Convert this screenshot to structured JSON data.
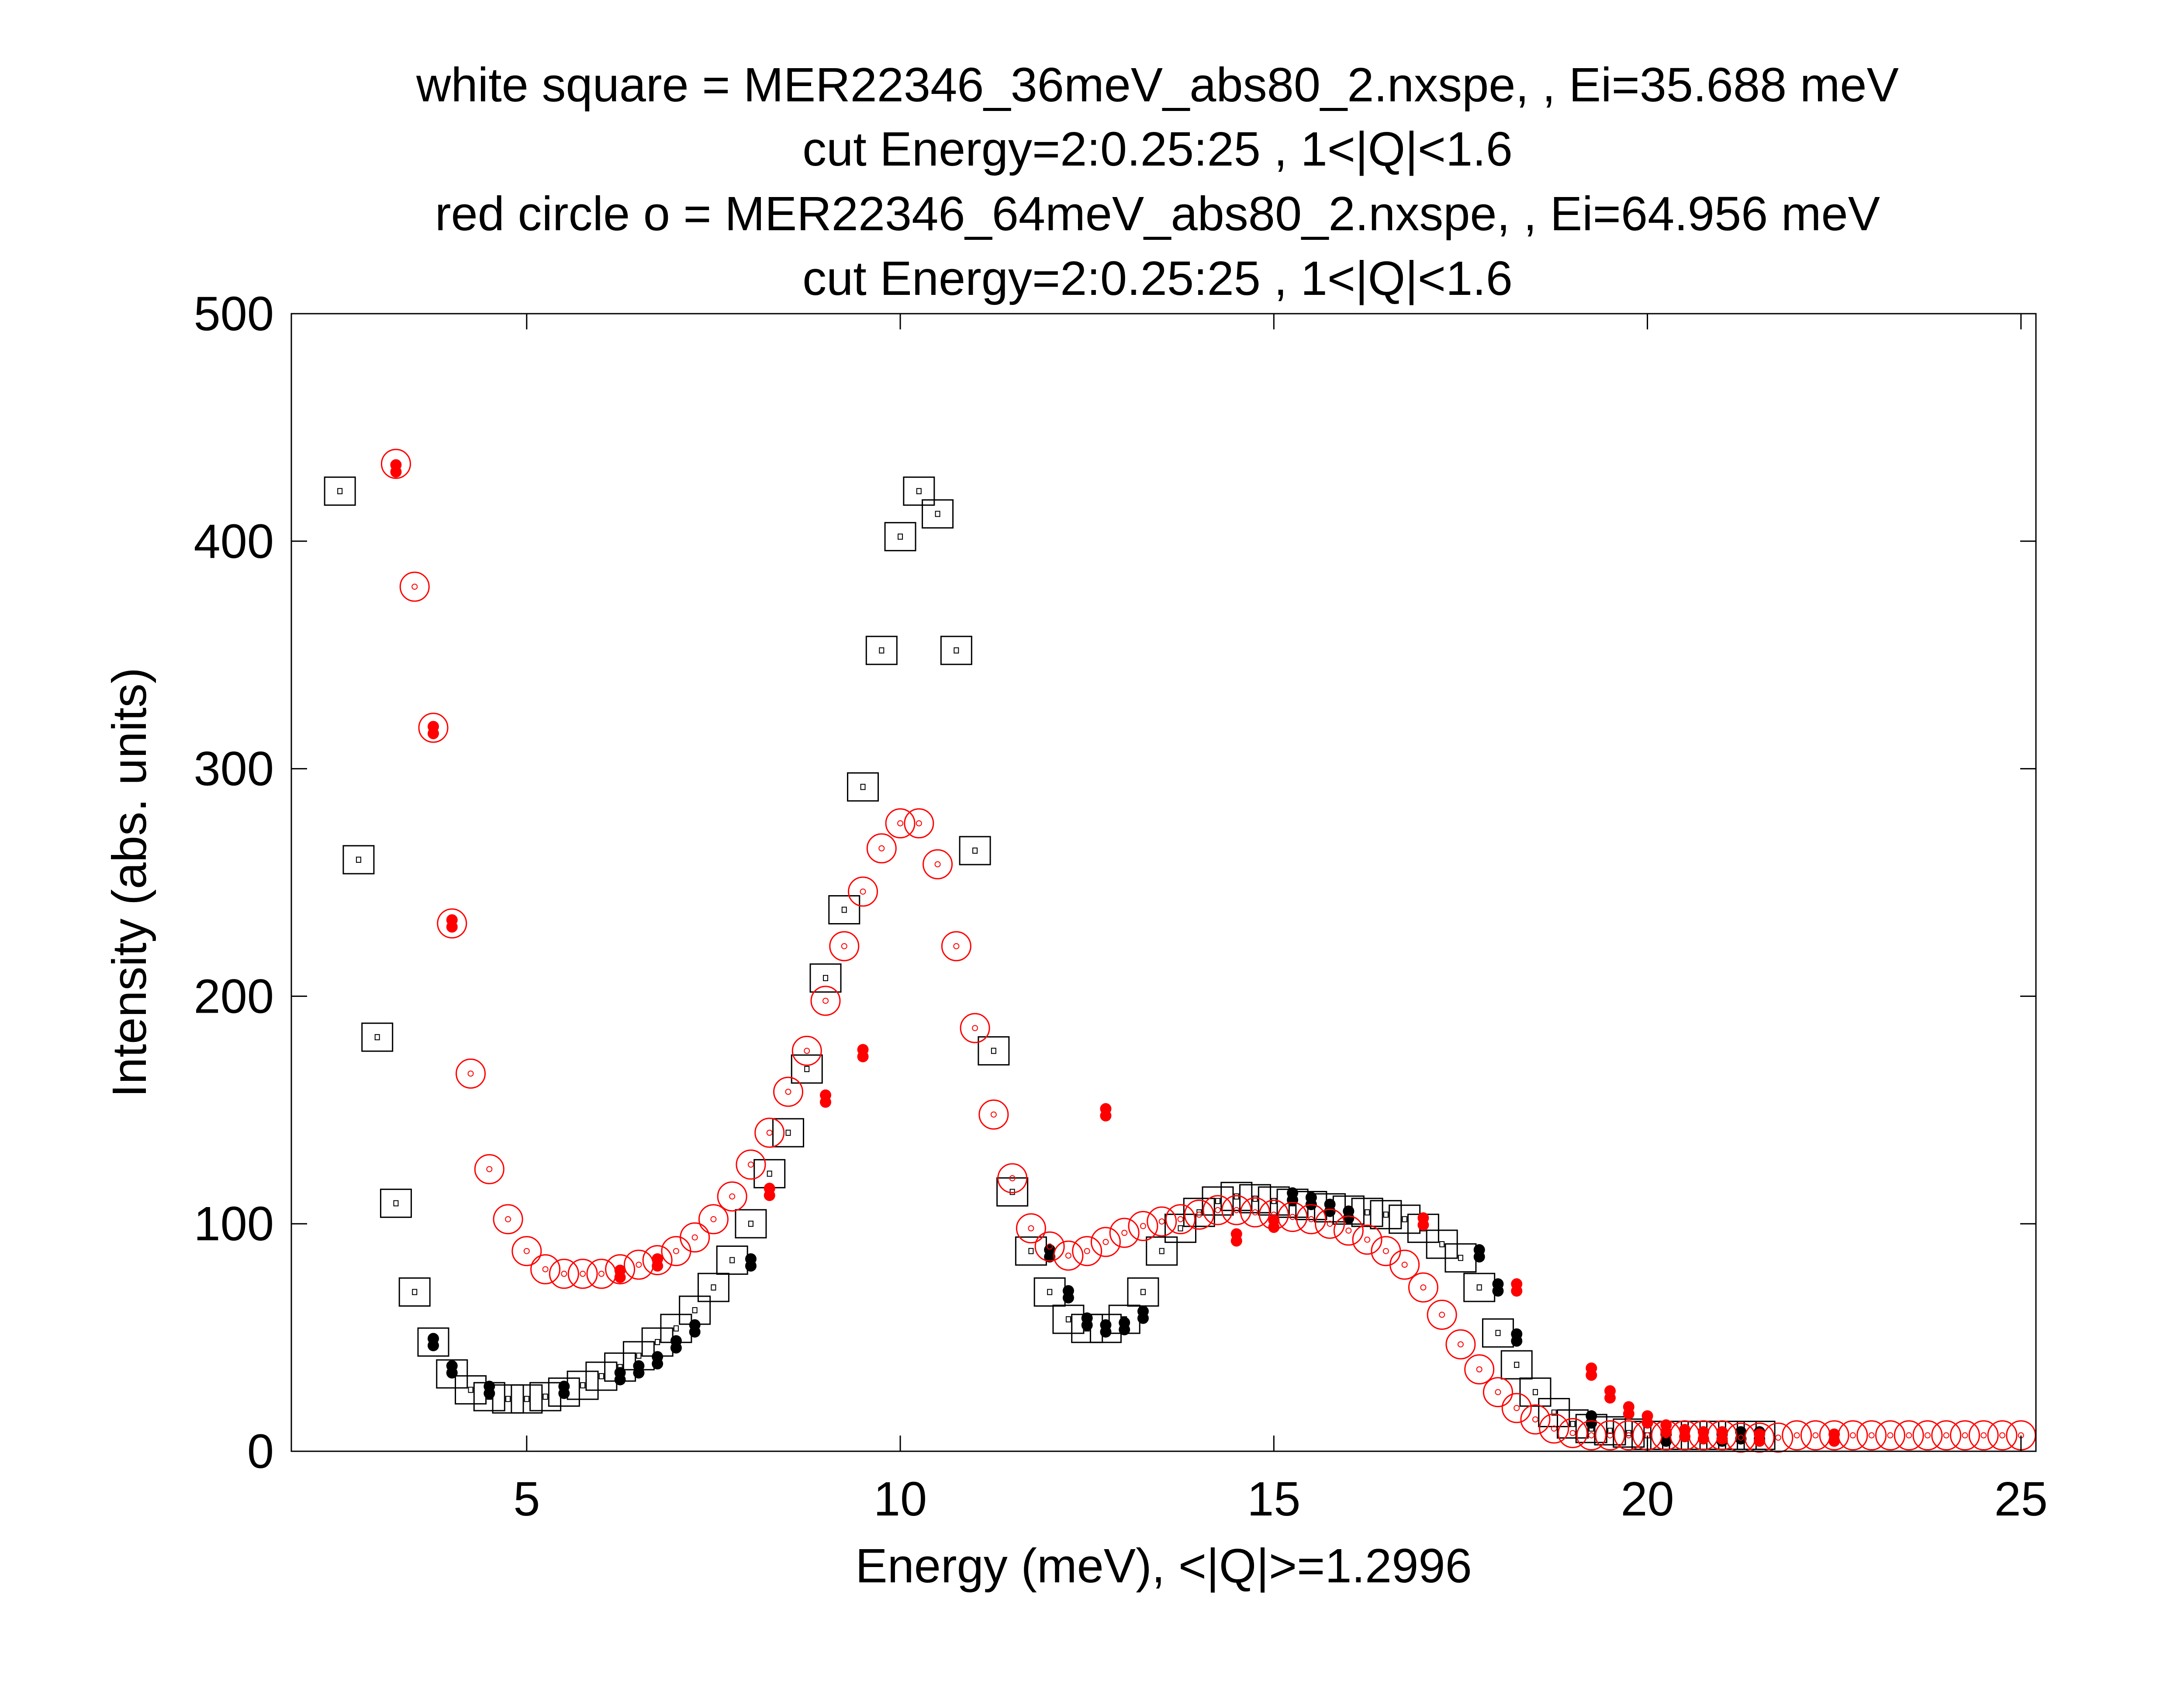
{
  "chart_data": {
    "type": "scatter",
    "title_lines": [
      "white square = MER22346_36meV_abs80_2.nxspe, , Ei=35.688 meV",
      "cut Energy=2:0.25:25 , 1<|Q|<1.6",
      "red circle o = MER22346_64meV_abs80_2.nxspe, , Ei=64.956 meV",
      "cut Energy=2:0.25:25 , 1<|Q|<1.6"
    ],
    "xlabel": "Energy (meV), <|Q|>=1.2996",
    "ylabel": "Intensity (abs. units)",
    "xlim": [
      1.85,
      25.2
    ],
    "ylim": [
      0,
      500
    ],
    "x_ticks": [
      5,
      10,
      15,
      20,
      25
    ],
    "y_ticks": [
      0,
      100,
      200,
      300,
      400,
      500
    ],
    "grid": false,
    "colors": {
      "series1": "#000000",
      "series2": "#ff0000",
      "axes": "#000000"
    },
    "series": [
      {
        "marker": "square",
        "x": [
          2.5,
          2.75,
          3.0,
          3.25,
          3.5,
          3.75,
          4.0,
          4.25,
          4.5,
          4.75,
          5.0,
          5.25,
          5.5,
          5.75,
          6.0,
          6.25,
          6.5,
          6.75,
          7.0,
          7.25,
          7.5,
          7.75,
          8.0,
          8.25,
          8.5,
          8.75,
          9.0,
          9.25,
          9.5,
          9.75,
          10.0,
          10.25,
          10.5,
          10.75,
          11.0,
          11.25,
          11.5,
          11.75,
          12.0,
          12.25,
          12.5,
          12.75,
          13.0,
          13.25,
          13.5,
          13.75,
          14.0,
          14.25,
          14.5,
          14.75,
          15.0,
          15.25,
          15.5,
          15.75,
          16.0,
          16.25,
          16.5,
          16.75,
          17.0,
          17.25,
          17.5,
          17.75,
          18.0,
          18.25,
          18.5,
          18.75,
          19.0,
          19.25,
          19.5,
          19.75,
          20.0,
          20.25,
          20.5,
          20.75,
          21.0,
          21.25,
          21.5
        ],
        "y": [
          422,
          260,
          182,
          109,
          70,
          48,
          34,
          27,
          24,
          23,
          23,
          24,
          26,
          29,
          33,
          37,
          42,
          48,
          54,
          62,
          72,
          84,
          100,
          122,
          140,
          168,
          208,
          238,
          292,
          352,
          402,
          422,
          412,
          352,
          264,
          176,
          114,
          88,
          70,
          58,
          54,
          54,
          58,
          70,
          88,
          98,
          105,
          110,
          112,
          111,
          110,
          109,
          108,
          107,
          106,
          105,
          104,
          102,
          98,
          91,
          85,
          72,
          52,
          38,
          26,
          17,
          12,
          10,
          9,
          8,
          7,
          7,
          7,
          7,
          7,
          7,
          7
        ],
        "error_points": [
          {
            "x": 3.75,
            "y": 48
          },
          {
            "x": 4.0,
            "y": 36
          },
          {
            "x": 4.5,
            "y": 27
          },
          {
            "x": 5.5,
            "y": 27
          },
          {
            "x": 6.25,
            "y": 33
          },
          {
            "x": 6.5,
            "y": 36
          },
          {
            "x": 6.75,
            "y": 40
          },
          {
            "x": 7.0,
            "y": 47
          },
          {
            "x": 7.25,
            "y": 54
          },
          {
            "x": 8.0,
            "y": 83
          },
          {
            "x": 12.0,
            "y": 87
          },
          {
            "x": 12.25,
            "y": 69
          },
          {
            "x": 12.5,
            "y": 57
          },
          {
            "x": 12.75,
            "y": 54
          },
          {
            "x": 13.0,
            "y": 55
          },
          {
            "x": 13.25,
            "y": 60
          },
          {
            "x": 15.25,
            "y": 112
          },
          {
            "x": 15.5,
            "y": 110
          },
          {
            "x": 15.75,
            "y": 107
          },
          {
            "x": 16.0,
            "y": 104
          },
          {
            "x": 17.75,
            "y": 87
          },
          {
            "x": 18.0,
            "y": 72
          },
          {
            "x": 18.25,
            "y": 50
          },
          {
            "x": 19.25,
            "y": 14
          },
          {
            "x": 20.25,
            "y": 6
          },
          {
            "x": 21.0,
            "y": 6
          },
          {
            "x": 21.25,
            "y": 7
          },
          {
            "x": 21.5,
            "y": 7
          }
        ]
      },
      {
        "marker": "circle",
        "x": [
          3.25,
          3.5,
          3.75,
          4.0,
          4.25,
          4.5,
          4.75,
          5.0,
          5.25,
          5.5,
          5.75,
          6.0,
          6.25,
          6.5,
          6.75,
          7.0,
          7.25,
          7.5,
          7.75,
          8.0,
          8.25,
          8.5,
          8.75,
          9.0,
          9.25,
          9.5,
          9.75,
          10.0,
          10.25,
          10.5,
          10.75,
          11.0,
          11.25,
          11.5,
          11.75,
          12.0,
          12.25,
          12.5,
          12.75,
          13.0,
          13.25,
          13.5,
          13.75,
          14.0,
          14.25,
          14.5,
          14.75,
          15.0,
          15.25,
          15.5,
          15.75,
          16.0,
          16.25,
          16.5,
          16.75,
          17.0,
          17.25,
          17.5,
          17.75,
          18.0,
          18.25,
          18.5,
          18.75,
          19.0,
          19.25,
          19.5,
          19.75,
          20.0,
          20.25,
          20.5,
          20.75,
          21.0,
          21.25,
          21.5,
          21.75,
          22.0,
          22.25,
          22.5,
          22.75,
          23.0,
          23.25,
          23.5,
          23.75,
          24.0,
          24.25,
          24.5,
          24.75,
          25.0
        ],
        "y": [
          434,
          380,
          318,
          232,
          166,
          124,
          102,
          88,
          80,
          78,
          78,
          78,
          80,
          82,
          84,
          88,
          94,
          102,
          112,
          126,
          140,
          158,
          176,
          198,
          222,
          246,
          265,
          276,
          276,
          258,
          222,
          186,
          148,
          120,
          98,
          90,
          86,
          88,
          92,
          96,
          99,
          101,
          102,
          104,
          106,
          106,
          105,
          104,
          103,
          102,
          100,
          97,
          93,
          88,
          82,
          72,
          60,
          47,
          36,
          26,
          19,
          14,
          10,
          8,
          7,
          7,
          7,
          7,
          7,
          7,
          7,
          7,
          6,
          6,
          6,
          7,
          7,
          7,
          7,
          7,
          7,
          7,
          7,
          7,
          7,
          7,
          7,
          7
        ],
        "error_points": [
          {
            "x": 3.25,
            "y": 432
          },
          {
            "x": 3.75,
            "y": 317
          },
          {
            "x": 4.0,
            "y": 232
          },
          {
            "x": 6.25,
            "y": 78
          },
          {
            "x": 6.75,
            "y": 83
          },
          {
            "x": 8.25,
            "y": 114
          },
          {
            "x": 9.0,
            "y": 155
          },
          {
            "x": 9.5,
            "y": 175
          },
          {
            "x": 12.75,
            "y": 149
          },
          {
            "x": 14.5,
            "y": 94
          },
          {
            "x": 15.0,
            "y": 100
          },
          {
            "x": 17.0,
            "y": 101
          },
          {
            "x": 18.25,
            "y": 72
          },
          {
            "x": 19.25,
            "y": 35
          },
          {
            "x": 19.5,
            "y": 25
          },
          {
            "x": 19.75,
            "y": 18
          },
          {
            "x": 20.0,
            "y": 14
          },
          {
            "x": 20.25,
            "y": 10
          },
          {
            "x": 20.5,
            "y": 8
          },
          {
            "x": 20.75,
            "y": 7
          },
          {
            "x": 21.0,
            "y": 7
          },
          {
            "x": 21.5,
            "y": 6
          },
          {
            "x": 22.5,
            "y": 6
          }
        ]
      }
    ]
  }
}
